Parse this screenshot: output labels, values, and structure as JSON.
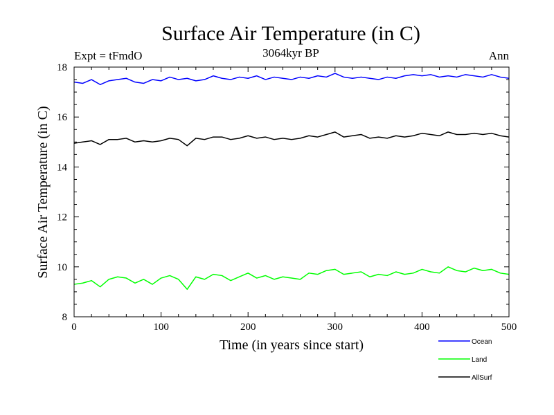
{
  "chart_data": {
    "type": "line",
    "title": "Surface Air Temperature (in C)",
    "subtitle": "3064kyr BP",
    "left_label": "Expt = tFmdO",
    "right_label": "Ann",
    "xlabel": "Time (in years since start)",
    "ylabel": "Surface Air Temperature (in C)",
    "xlim": [
      0,
      500
    ],
    "ylim": [
      8,
      18
    ],
    "xticks": [
      0,
      100,
      200,
      300,
      400,
      500
    ],
    "yticks": [
      8,
      10,
      12,
      14,
      16,
      18
    ],
    "x": [
      0,
      10,
      20,
      30,
      40,
      50,
      60,
      70,
      80,
      90,
      100,
      110,
      120,
      130,
      140,
      150,
      160,
      170,
      180,
      190,
      200,
      210,
      220,
      230,
      240,
      250,
      260,
      270,
      280,
      290,
      300,
      310,
      320,
      330,
      340,
      350,
      360,
      370,
      380,
      390,
      400,
      410,
      420,
      430,
      440,
      450,
      460,
      470,
      480,
      490,
      500
    ],
    "series": [
      {
        "name": "Ocean",
        "color": "#0000ff",
        "values": [
          17.4,
          17.35,
          17.5,
          17.3,
          17.45,
          17.5,
          17.55,
          17.4,
          17.35,
          17.5,
          17.45,
          17.6,
          17.5,
          17.55,
          17.45,
          17.5,
          17.65,
          17.55,
          17.5,
          17.6,
          17.55,
          17.65,
          17.5,
          17.6,
          17.55,
          17.5,
          17.6,
          17.55,
          17.65,
          17.6,
          17.75,
          17.6,
          17.55,
          17.6,
          17.55,
          17.5,
          17.6,
          17.55,
          17.65,
          17.7,
          17.65,
          17.7,
          17.6,
          17.65,
          17.6,
          17.7,
          17.65,
          17.6,
          17.7,
          17.6,
          17.55
        ]
      },
      {
        "name": "Land",
        "color": "#00ff00",
        "values": [
          9.3,
          9.35,
          9.45,
          9.2,
          9.5,
          9.6,
          9.55,
          9.35,
          9.5,
          9.3,
          9.55,
          9.65,
          9.5,
          9.1,
          9.6,
          9.5,
          9.7,
          9.65,
          9.45,
          9.6,
          9.75,
          9.55,
          9.65,
          9.5,
          9.6,
          9.55,
          9.5,
          9.75,
          9.7,
          9.85,
          9.9,
          9.7,
          9.75,
          9.8,
          9.6,
          9.7,
          9.65,
          9.8,
          9.7,
          9.75,
          9.9,
          9.8,
          9.75,
          10.0,
          9.85,
          9.8,
          9.95,
          9.85,
          9.9,
          9.75,
          9.7
        ]
      },
      {
        "name": "AllSurf",
        "color": "#000000",
        "values": [
          14.95,
          15.0,
          15.05,
          14.9,
          15.1,
          15.1,
          15.15,
          15.0,
          15.05,
          15.0,
          15.05,
          15.15,
          15.1,
          14.85,
          15.15,
          15.1,
          15.2,
          15.2,
          15.1,
          15.15,
          15.25,
          15.15,
          15.2,
          15.1,
          15.15,
          15.1,
          15.15,
          15.25,
          15.2,
          15.3,
          15.4,
          15.2,
          15.25,
          15.3,
          15.15,
          15.2,
          15.15,
          15.25,
          15.2,
          15.25,
          15.35,
          15.3,
          15.25,
          15.4,
          15.3,
          15.3,
          15.35,
          15.3,
          15.35,
          15.25,
          15.2
        ]
      }
    ]
  }
}
